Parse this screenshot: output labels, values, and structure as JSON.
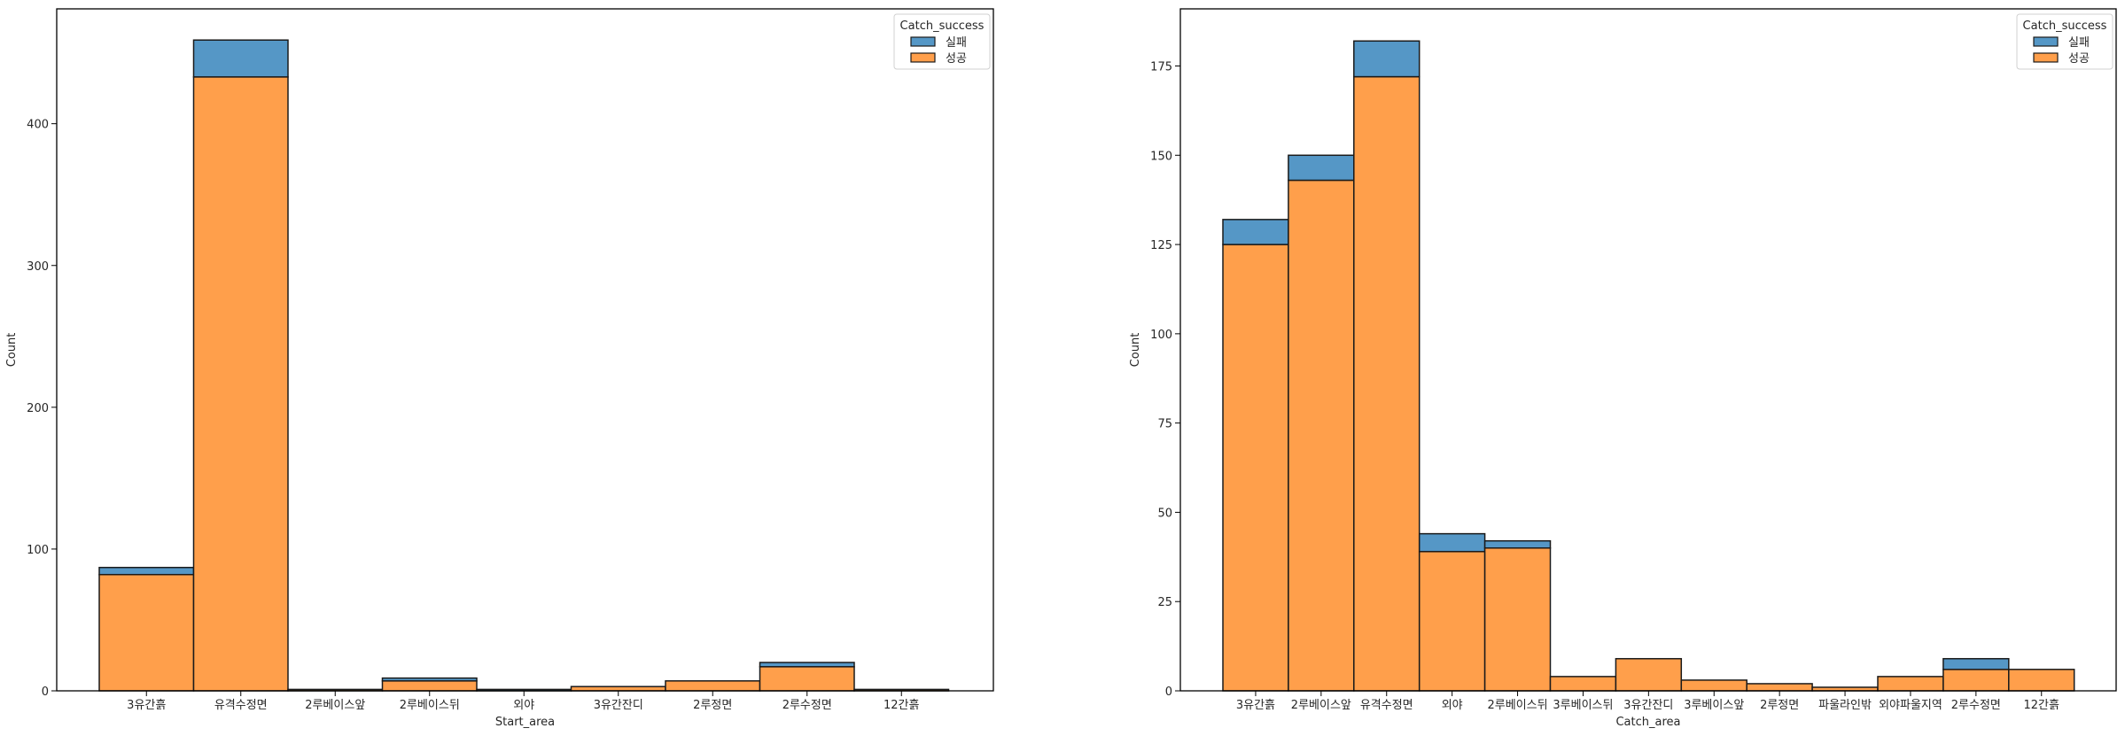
{
  "chart_data": [
    {
      "type": "bar",
      "stacked": true,
      "xlabel": "Start_area",
      "ylabel": "Count",
      "ylim": [
        0,
        481
      ],
      "yticks": [
        0,
        100,
        200,
        300,
        400
      ],
      "categories": [
        "3유간흙",
        "유격수정면",
        "2루베이스앞",
        "2루베이스뒤",
        "외야",
        "3유간잔디",
        "2루정면",
        "2루수정면",
        "12간흙"
      ],
      "series": [
        {
          "name": "성공",
          "color": "#ff9f4b",
          "values": [
            82,
            433,
            1,
            7,
            0,
            3,
            7,
            17,
            1
          ]
        },
        {
          "name": "실패",
          "color": "#5597c6",
          "values": [
            5,
            26,
            0,
            2,
            1,
            0,
            0,
            3,
            0
          ]
        }
      ],
      "legend": {
        "title": "Catch_success",
        "entries": [
          "실패",
          "성공"
        ],
        "position": "top-right"
      },
      "grid": false
    },
    {
      "type": "bar",
      "stacked": true,
      "xlabel": "Catch_area",
      "ylabel": "Count",
      "ylim": [
        0,
        191
      ],
      "yticks": [
        0,
        25,
        50,
        75,
        100,
        125,
        150,
        175
      ],
      "categories": [
        "3유간흙",
        "2루베이스앞",
        "유격수정면",
        "외야",
        "2루베이스뒤",
        "3루베이스뒤",
        "3유간잔디",
        "3루베이스앞",
        "2루정면",
        "파울라인밖",
        "외야파울지역",
        "2루수정면",
        "12간흙"
      ],
      "series": [
        {
          "name": "성공",
          "color": "#ff9f4b",
          "values": [
            125,
            143,
            172,
            39,
            40,
            4,
            9,
            3,
            2,
            1,
            4,
            6,
            6
          ]
        },
        {
          "name": "실패",
          "color": "#5597c6",
          "values": [
            7,
            7,
            10,
            5,
            2,
            0,
            0,
            0,
            0,
            0,
            0,
            3,
            0
          ]
        }
      ],
      "legend": {
        "title": "Catch_success",
        "entries": [
          "실패",
          "성공"
        ],
        "position": "top-right"
      },
      "grid": false
    }
  ]
}
